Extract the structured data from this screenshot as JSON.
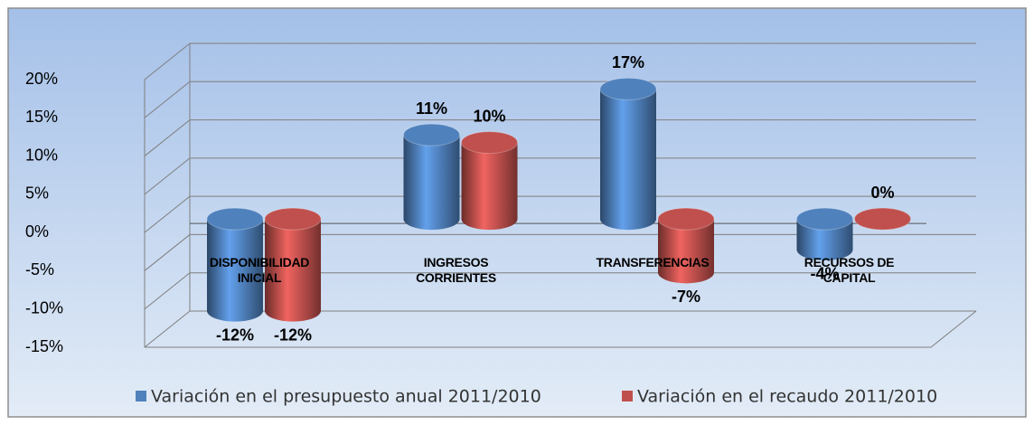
{
  "chart_data": {
    "type": "bar3d",
    "categories": [
      "DISPONIBILIDAD\nINICIAL",
      "INGRESOS\nCORRIENTES",
      "TRANSFERENCIAS",
      "RECURSOS DE\nCAPITAL"
    ],
    "series": [
      {
        "name": "Variación en el presupuesto anual 2011/2010",
        "color": "#4f81bd",
        "values": [
          -12,
          11,
          17,
          -4
        ],
        "value_labels": [
          "-12%",
          "11%",
          "17%",
          "-4%"
        ]
      },
      {
        "name": "Variación en el recaudo  2011/2010",
        "color": "#c0504d",
        "values": [
          -12,
          10,
          -7,
          0
        ],
        "value_labels": [
          "-12%",
          "10%",
          "-7%",
          "0%"
        ]
      }
    ],
    "ylim": [
      -15,
      20
    ],
    "yticks": [
      {
        "value": -15,
        "label": "-15%"
      },
      {
        "value": -10,
        "label": "-10%"
      },
      {
        "value": -5,
        "label": "-5%"
      },
      {
        "value": 0,
        "label": "0%"
      },
      {
        "value": 5,
        "label": "5%"
      },
      {
        "value": 10,
        "label": "10%"
      },
      {
        "value": 15,
        "label": "15%"
      },
      {
        "value": 20,
        "label": "20%"
      }
    ],
    "grid": true,
    "legend": "bottom"
  }
}
